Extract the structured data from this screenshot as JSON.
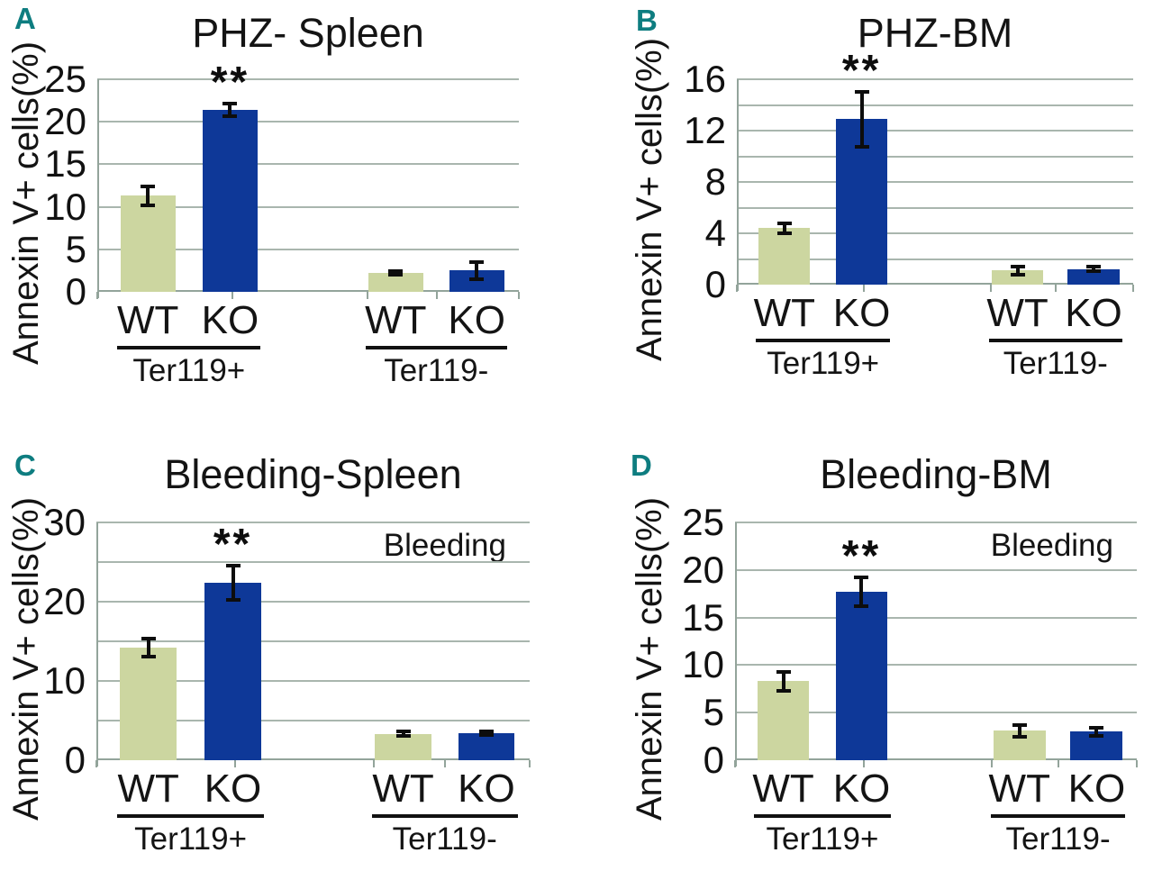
{
  "colors": {
    "background": "#ffffff",
    "wt_bar": "#ccd6a0",
    "ko_bar": "#0e3898",
    "gridline": "#a9b6ae",
    "axis": "#93a49b",
    "error_bar": "#0d0d0d",
    "panel_letter": "#0e7d80",
    "text": "#141414"
  },
  "series": [
    {
      "name": "WT",
      "color_key": "wt_bar"
    },
    {
      "name": "KO",
      "color_key": "ko_bar"
    }
  ],
  "chart_data": [
    {
      "type": "bar",
      "panel_label": "A",
      "title": "PHZ- Spleen",
      "ylabel": "Annexin V+ cells(%)",
      "annotation": "",
      "ymax": 25,
      "yticks": [
        0,
        5,
        10,
        15,
        20,
        25
      ],
      "grid_step": 5,
      "legend": "none",
      "groups": [
        {
          "label": "Ter119+",
          "bars": [
            {
              "series": "WT",
              "value": 11.3,
              "error": 1.2,
              "sig": ""
            },
            {
              "series": "KO",
              "value": 21.4,
              "error": 0.8,
              "sig": "**"
            }
          ]
        },
        {
          "label": "Ter119-",
          "bars": [
            {
              "series": "WT",
              "value": 2.2,
              "error": 0.3,
              "sig": ""
            },
            {
              "series": "KO",
              "value": 2.5,
              "error": 1.1,
              "sig": ""
            }
          ]
        }
      ]
    },
    {
      "type": "bar",
      "panel_label": "B",
      "title": "PHZ-BM",
      "ylabel": "Annexin V+ cells(%)",
      "annotation": "",
      "ymax": 16,
      "yticks": [
        0,
        4,
        8,
        12,
        16
      ],
      "grid_step": 2,
      "legend": "none",
      "groups": [
        {
          "label": "Ter119+",
          "bars": [
            {
              "series": "WT",
              "value": 4.4,
              "error": 0.45,
              "sig": ""
            },
            {
              "series": "KO",
              "value": 12.9,
              "error": 2.2,
              "sig": "**"
            }
          ]
        },
        {
          "label": "Ter119-",
          "bars": [
            {
              "series": "WT",
              "value": 1.1,
              "error": 0.4,
              "sig": ""
            },
            {
              "series": "KO",
              "value": 1.2,
              "error": 0.25,
              "sig": ""
            }
          ]
        }
      ]
    },
    {
      "type": "bar",
      "panel_label": "C",
      "title": "Bleeding-Spleen",
      "ylabel": "Annexin V+ cells(%)",
      "annotation": "Bleeding",
      "ymax": 30,
      "yticks": [
        0,
        10,
        20,
        30
      ],
      "grid_step": 5,
      "legend": "none",
      "groups": [
        {
          "label": "Ter119+",
          "bars": [
            {
              "series": "WT",
              "value": 14.2,
              "error": 1.2,
              "sig": ""
            },
            {
              "series": "KO",
              "value": 22.4,
              "error": 2.3,
              "sig": "**"
            }
          ]
        },
        {
          "label": "Ter119-",
          "bars": [
            {
              "series": "WT",
              "value": 3.3,
              "error": 0.4,
              "sig": ""
            },
            {
              "series": "KO",
              "value": 3.4,
              "error": 0.35,
              "sig": ""
            }
          ]
        }
      ]
    },
    {
      "type": "bar",
      "panel_label": "D",
      "title": "Bleeding-BM",
      "ylabel": "Annexin V+ cells(%)",
      "annotation": "Bleeding",
      "ymax": 25,
      "yticks": [
        0,
        5,
        10,
        15,
        20,
        25
      ],
      "grid_step": 5,
      "legend": "none",
      "groups": [
        {
          "label": "Ter119+",
          "bars": [
            {
              "series": "WT",
              "value": 8.3,
              "error": 1.1,
              "sig": ""
            },
            {
              "series": "KO",
              "value": 17.7,
              "error": 1.6,
              "sig": "**"
            }
          ]
        },
        {
          "label": "Ter119-",
          "bars": [
            {
              "series": "WT",
              "value": 3.1,
              "error": 0.7,
              "sig": ""
            },
            {
              "series": "KO",
              "value": 3.0,
              "error": 0.5,
              "sig": ""
            }
          ]
        }
      ]
    }
  ]
}
